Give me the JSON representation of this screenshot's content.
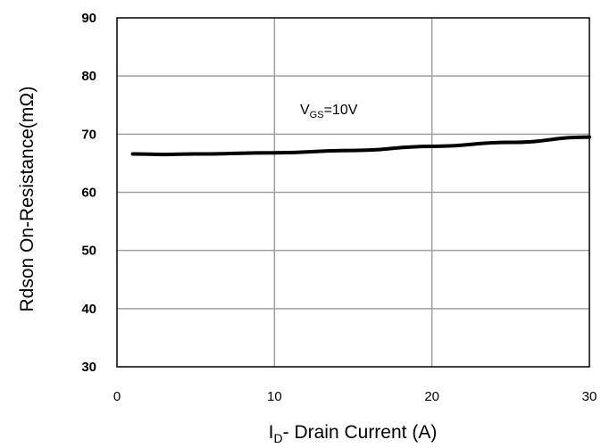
{
  "chart_data": {
    "type": "line",
    "title": "",
    "xlabel": {
      "main": "I",
      "sub": "D",
      "rest": "- Drain Current (A)"
    },
    "ylabel": "Rdson On-Resistance(mΩ)",
    "xlim": [
      0,
      30
    ],
    "ylim": [
      30,
      90
    ],
    "x_ticks": [
      0,
      10,
      20,
      30
    ],
    "y_ticks": [
      30,
      40,
      50,
      60,
      70,
      80,
      90
    ],
    "grid": true,
    "legend": "none",
    "annotation": {
      "main": "V",
      "sub": "GS",
      "rest": "=10V",
      "x": 12.5,
      "y": 74.5
    },
    "series": [
      {
        "color": "#000000",
        "x": [
          1,
          3,
          5,
          10,
          15,
          20,
          25,
          30
        ],
        "y": [
          66.6,
          66.5,
          66.6,
          66.8,
          67.2,
          67.9,
          68.6,
          69.5
        ]
      }
    ]
  }
}
